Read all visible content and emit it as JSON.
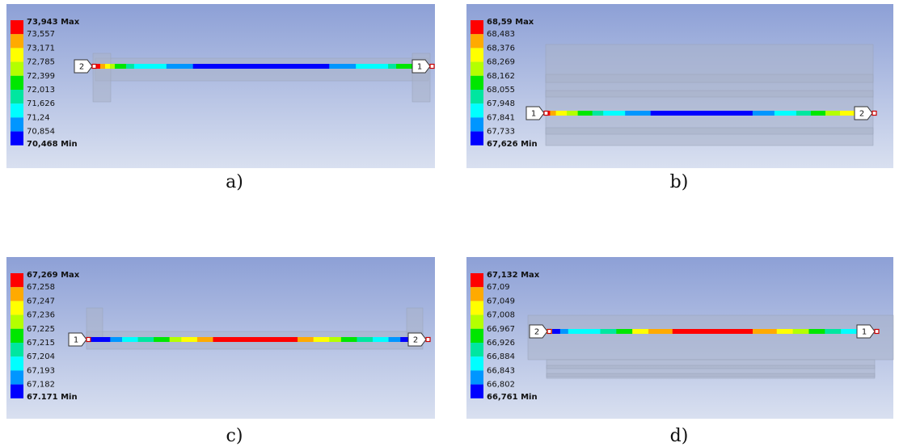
{
  "panels": [
    {
      "legend": [
        "73,943 Max",
        "73,557",
        "73,171",
        "72,785",
        "72,399",
        "72,013",
        "71,626",
        "71,24",
        "70,854",
        "70,468 Min"
      ],
      "pins": [
        "2",
        "1"
      ],
      "caption": "a)"
    },
    {
      "legend": [
        "68,59 Max",
        "68,483",
        "68,376",
        "68,269",
        "68,162",
        "68,055",
        "67,948",
        "67,841",
        "67,733",
        "67,626 Min"
      ],
      "pins": [
        "1",
        "2"
      ],
      "caption": "b)"
    },
    {
      "legend": [
        "67,269 Max",
        "67,258",
        "67,247",
        "67,236",
        "67,225",
        "67,215",
        "67,204",
        "67,193",
        "67,182",
        "67.171 Min"
      ],
      "pins": [
        "1",
        "2"
      ],
      "caption": "c)"
    },
    {
      "legend": [
        "67,132 Max",
        "67,09",
        "67,049",
        "67,008",
        "66,967",
        "66,926",
        "66,884",
        "66,843",
        "66,802",
        "66,761 Min"
      ],
      "pins": [
        "2",
        "1"
      ],
      "caption": "d)"
    }
  ]
}
